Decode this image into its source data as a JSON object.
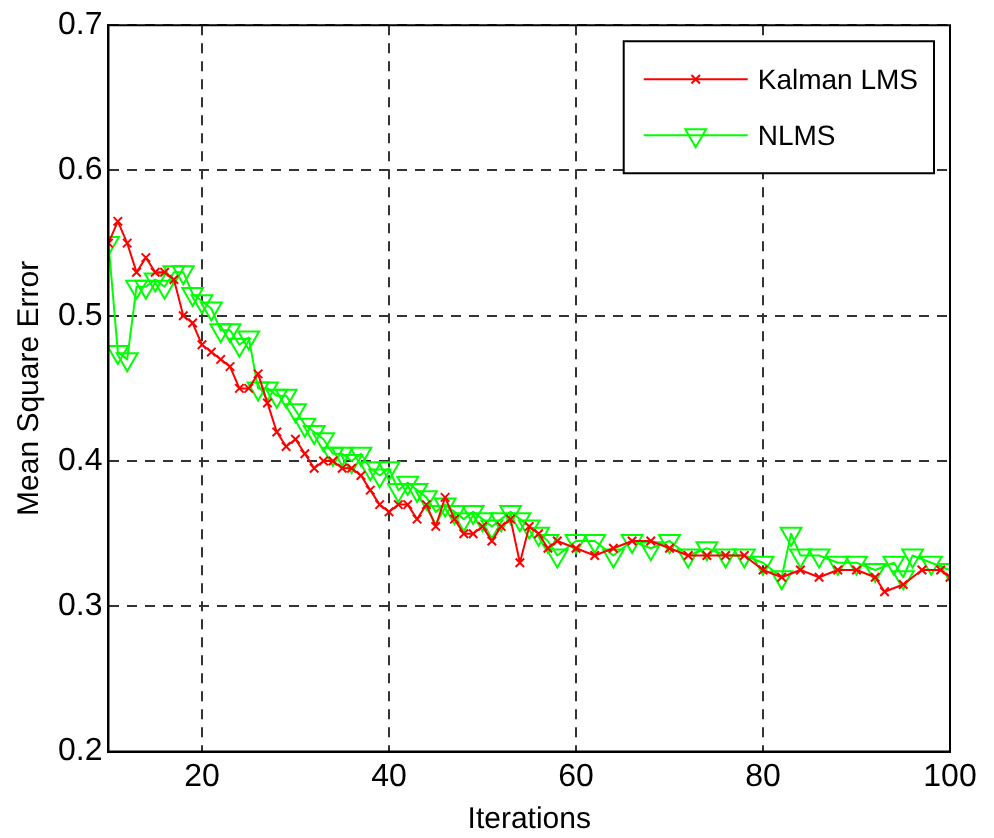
{
  "chart_data": {
    "type": "line",
    "xlabel": "Iterations",
    "ylabel": "Mean Square Error",
    "xlim": [
      10,
      100
    ],
    "xticks": [
      20,
      40,
      60,
      80,
      100
    ],
    "ylim": [
      0.2,
      0.7
    ],
    "yticks": [
      0.2,
      0.3,
      0.4,
      0.5,
      0.6,
      0.7
    ],
    "grid": true,
    "legend": "top right",
    "line_style": "solid",
    "series": [
      {
        "name": "Kalman LMS",
        "color": "#ff0000",
        "marker": "cross",
        "x": [
          10,
          11,
          12,
          13,
          14,
          15,
          16,
          17,
          18,
          19,
          20,
          21,
          22,
          23,
          24,
          25,
          26,
          27,
          28,
          29,
          30,
          31,
          32,
          33,
          34,
          35,
          36,
          37,
          38,
          39,
          40,
          41,
          42,
          43,
          44,
          45,
          46,
          47,
          48,
          49,
          50,
          51,
          52,
          53,
          54,
          55,
          56,
          57,
          58,
          60,
          62,
          64,
          66,
          68,
          70,
          72,
          74,
          76,
          78,
          80,
          82,
          84,
          86,
          88,
          90,
          92,
          93,
          95,
          97,
          99,
          100
        ],
        "values": [
          0.55,
          0.565,
          0.55,
          0.53,
          0.54,
          0.53,
          0.53,
          0.525,
          0.5,
          0.495,
          0.48,
          0.475,
          0.47,
          0.465,
          0.45,
          0.45,
          0.46,
          0.44,
          0.42,
          0.41,
          0.415,
          0.405,
          0.395,
          0.4,
          0.4,
          0.395,
          0.395,
          0.39,
          0.38,
          0.37,
          0.365,
          0.37,
          0.37,
          0.36,
          0.37,
          0.355,
          0.375,
          0.36,
          0.35,
          0.35,
          0.355,
          0.345,
          0.355,
          0.36,
          0.33,
          0.355,
          0.35,
          0.34,
          0.345,
          0.34,
          0.335,
          0.34,
          0.345,
          0.345,
          0.34,
          0.335,
          0.335,
          0.335,
          0.335,
          0.325,
          0.32,
          0.325,
          0.32,
          0.325,
          0.325,
          0.32,
          0.31,
          0.315,
          0.325,
          0.325,
          0.32
        ]
      },
      {
        "name": "NLMS",
        "color": "#00ff00",
        "marker": "triangle",
        "x": [
          10,
          11,
          12,
          13,
          14,
          15,
          16,
          17,
          18,
          19,
          20,
          21,
          22,
          23,
          24,
          25,
          26,
          27,
          28,
          29,
          30,
          31,
          32,
          33,
          34,
          35,
          36,
          37,
          38,
          39,
          40,
          41,
          42,
          43,
          44,
          45,
          46,
          47,
          48,
          49,
          50,
          51,
          52,
          53,
          54,
          55,
          56,
          57,
          58,
          60,
          62,
          64,
          66,
          68,
          70,
          72,
          74,
          76,
          78,
          80,
          82,
          83,
          84,
          86,
          88,
          90,
          92,
          94,
          95,
          96,
          98,
          100
        ],
        "values": [
          0.55,
          0.475,
          0.47,
          0.52,
          0.52,
          0.525,
          0.52,
          0.53,
          0.53,
          0.515,
          0.51,
          0.505,
          0.49,
          0.49,
          0.48,
          0.485,
          0.45,
          0.45,
          0.445,
          0.445,
          0.435,
          0.425,
          0.42,
          0.415,
          0.405,
          0.405,
          0.4,
          0.405,
          0.395,
          0.39,
          0.395,
          0.38,
          0.385,
          0.38,
          0.375,
          0.365,
          0.37,
          0.365,
          0.36,
          0.365,
          0.36,
          0.355,
          0.36,
          0.365,
          0.36,
          0.355,
          0.35,
          0.345,
          0.335,
          0.345,
          0.345,
          0.335,
          0.345,
          0.34,
          0.345,
          0.335,
          0.34,
          0.335,
          0.335,
          0.33,
          0.32,
          0.35,
          0.335,
          0.335,
          0.33,
          0.33,
          0.325,
          0.33,
          0.32,
          0.335,
          0.33,
          0.325
        ]
      }
    ]
  }
}
